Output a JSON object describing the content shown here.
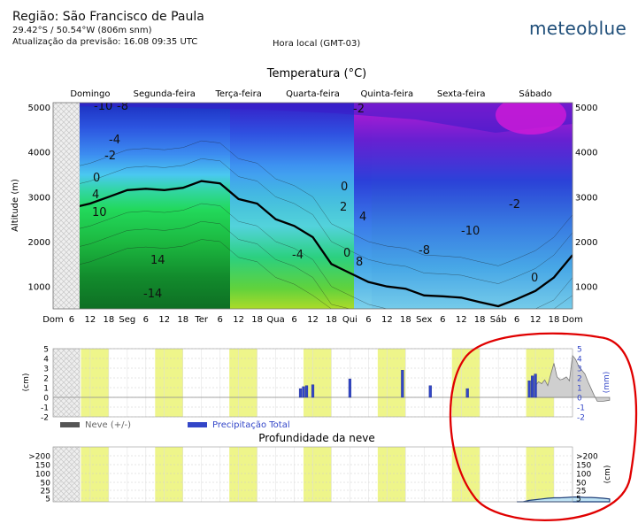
{
  "header": {
    "region": "Região: São Francisco de Paula",
    "coordinates": "29.42°S / 50.54°W (806m snm)",
    "updated": "Atualização da previsão: 16.08 09:35 UTC",
    "timezone": "Hora local (GMT-03)",
    "brand": "meteoblue"
  },
  "colors": {
    "brand": "#1f4e79",
    "day_band": "#eef58a",
    "snow_line": "#555555",
    "precip_bar": "#3346c8",
    "annotation": "#e00000"
  },
  "annotation": {
    "shape": "ellipse",
    "color": "#e00000",
    "target": "sexta/sábado precipitation and snow"
  },
  "chart_data": [
    {
      "type": "heatmap",
      "title": "Temperatura (°C)",
      "ylabel": "Altitude (m)",
      "ylim": [
        500,
        5100
      ],
      "yticks": [
        "1000",
        "2000",
        "3000",
        "4000",
        "5000"
      ],
      "days": [
        "Domingo",
        "Segunda-feira",
        "Terça-feira",
        "Quarta-feira",
        "Quinta-feira",
        "Sexta-feira",
        "Sábado"
      ],
      "xtick_labels": [
        "Dom",
        "6",
        "12",
        "18",
        "Seg",
        "6",
        "12",
        "18",
        "Ter",
        "6",
        "12",
        "18",
        "Qua",
        "6",
        "12",
        "18",
        "Qui",
        "6",
        "12",
        "18",
        "Sex",
        "6",
        "12",
        "18",
        "Sáb",
        "6",
        "12",
        "18",
        "Dom"
      ],
      "contour_labels": [
        "-10",
        "-8",
        "-4",
        "-2",
        "0",
        "4",
        "10",
        "14",
        "-14",
        "-2",
        "0",
        "2",
        "4",
        "8",
        "0",
        "-4",
        "-8",
        "-10",
        "-2",
        "0"
      ],
      "freezing_level_m": [
        [
          0,
          1500
        ],
        [
          6,
          2750
        ],
        [
          12,
          2850
        ],
        [
          18,
          3000
        ],
        [
          24,
          3150
        ],
        [
          30,
          3180
        ],
        [
          36,
          3150
        ],
        [
          42,
          3200
        ],
        [
          48,
          3350
        ],
        [
          54,
          3300
        ],
        [
          60,
          2950
        ],
        [
          66,
          2850
        ],
        [
          72,
          2500
        ],
        [
          78,
          2350
        ],
        [
          84,
          2100
        ],
        [
          90,
          1500
        ],
        [
          96,
          1300
        ],
        [
          102,
          1100
        ],
        [
          108,
          1000
        ],
        [
          114,
          950
        ],
        [
          120,
          800
        ],
        [
          126,
          780
        ],
        [
          132,
          750
        ],
        [
          138,
          650
        ],
        [
          144,
          560
        ],
        [
          150,
          720
        ],
        [
          156,
          900
        ],
        [
          162,
          1200
        ],
        [
          168,
          1700
        ]
      ]
    },
    {
      "type": "bar",
      "legend": [
        "Neve (+/-)",
        "Precipitação Total"
      ],
      "ylabel_left": "(cm)",
      "ylabel_right": "(mm)",
      "yticks_left": [
        "5",
        "4",
        "3",
        "2",
        "1",
        "0",
        "-1",
        "-2"
      ],
      "yticks_right": [
        "5",
        "4",
        "3",
        "2",
        "1",
        "0",
        "-1",
        "-2"
      ],
      "ylim": [
        -2,
        5
      ],
      "precipitation": [
        [
          80,
          0.9
        ],
        [
          81,
          1.1
        ],
        [
          82,
          1.2
        ],
        [
          84,
          1.3
        ],
        [
          96,
          1.9
        ],
        [
          113,
          2.8
        ],
        [
          122,
          1.2
        ],
        [
          134,
          0.9
        ],
        [
          154,
          1.7
        ],
        [
          155,
          2.2
        ],
        [
          156,
          2.4
        ]
      ],
      "snow": [
        [
          156,
          1.2
        ],
        [
          157,
          1.6
        ],
        [
          158,
          1.4
        ],
        [
          159,
          1.8
        ],
        [
          160,
          1.2
        ],
        [
          161,
          2.4
        ],
        [
          162,
          3.5
        ],
        [
          163,
          2.1
        ],
        [
          164,
          1.8
        ],
        [
          165,
          1.9
        ],
        [
          166,
          2.1
        ],
        [
          167,
          1.7
        ],
        [
          168,
          4.3
        ],
        [
          169,
          3.9
        ],
        [
          170,
          3.2
        ],
        [
          171,
          2.8
        ],
        [
          172,
          2.4
        ],
        [
          173,
          1.6
        ],
        [
          174,
          0.9
        ],
        [
          175,
          0.2
        ],
        [
          176,
          -0.4
        ],
        [
          178,
          -0.4
        ],
        [
          180,
          -0.3
        ]
      ]
    },
    {
      "type": "area",
      "title": "Profundidade da neve",
      "ylabel": "(cm)",
      "yticks": [
        ">200",
        "150",
        "100",
        "50",
        "25",
        "5"
      ],
      "depth_cm": [
        [
          150,
          0
        ],
        [
          152,
          0
        ],
        [
          154,
          2
        ],
        [
          156,
          3
        ],
        [
          158,
          4
        ],
        [
          160,
          5
        ],
        [
          162,
          6
        ],
        [
          164,
          6
        ],
        [
          166,
          7
        ],
        [
          168,
          8
        ],
        [
          170,
          8
        ],
        [
          172,
          7
        ],
        [
          174,
          7
        ],
        [
          176,
          6
        ],
        [
          178,
          5
        ],
        [
          180,
          4
        ]
      ]
    }
  ]
}
